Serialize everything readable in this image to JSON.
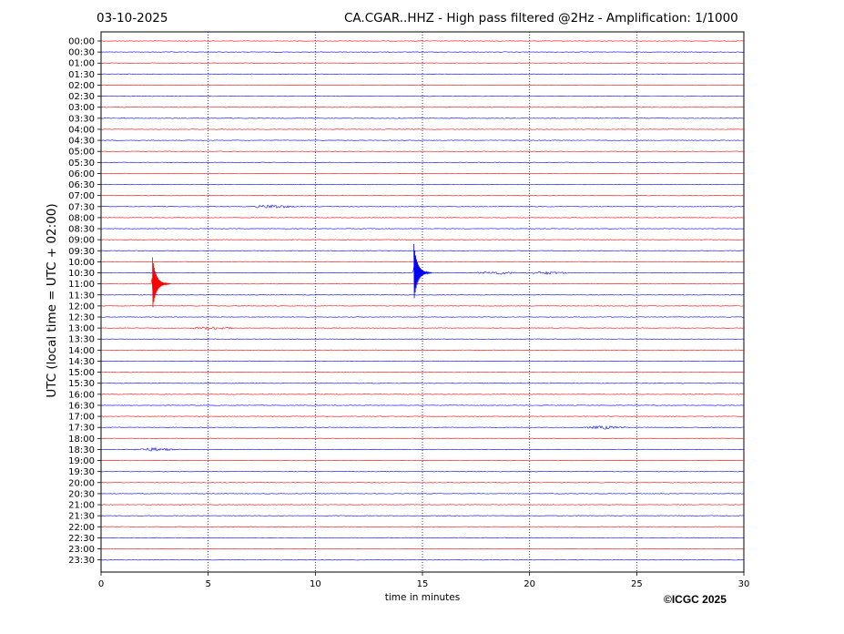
{
  "header": {
    "date": "03-10-2025",
    "title": "CA.CGAR..HHZ - High pass filtered @2Hz - Amplification: 1/1000"
  },
  "footer": {
    "copyright": "©ICGC 2025"
  },
  "chart_data": {
    "type": "line",
    "title": "CA.CGAR..HHZ - High pass filtered @2Hz - Amplification: 1/1000",
    "xlabel": "time in minutes",
    "ylabel": "UTC (local time = UTC + 02:00)",
    "xlim": [
      0,
      30
    ],
    "x_ticks": [
      0,
      5,
      10,
      15,
      20,
      25,
      30
    ],
    "x_grid": "dotted vertical lines at 5, 10, 15, 20, 25",
    "y_ticks": [
      "00:00",
      "00:30",
      "01:00",
      "01:30",
      "02:00",
      "02:30",
      "03:00",
      "03:30",
      "04:00",
      "04:30",
      "05:00",
      "05:30",
      "06:00",
      "06:30",
      "07:00",
      "07:30",
      "08:00",
      "08:30",
      "09:00",
      "09:30",
      "10:00",
      "10:30",
      "11:00",
      "11:30",
      "12:00",
      "12:30",
      "13:00",
      "13:30",
      "14:00",
      "14:30",
      "15:00",
      "15:30",
      "16:00",
      "16:30",
      "17:00",
      "17:30",
      "18:00",
      "18:30",
      "19:00",
      "19:30",
      "20:00",
      "20:30",
      "21:00",
      "21:30",
      "22:00",
      "22:30",
      "23:00",
      "23:30"
    ],
    "trace_colors": [
      "#ff0000",
      "#0000ff"
    ],
    "events": [
      {
        "trace": "11:00",
        "minute": 2.4,
        "amplitude": 2.4,
        "color": "#ff0000"
      },
      {
        "trace": "10:30",
        "minute": 14.6,
        "amplitude": 2.6,
        "color": "#0000ff"
      }
    ],
    "noise_bursts": [
      {
        "trace": "07:30",
        "minute": 8.0,
        "amplitude": 0.35
      },
      {
        "trace": "13:00",
        "minute": 5.2,
        "amplitude": 0.3
      },
      {
        "trace": "17:30",
        "minute": 23.5,
        "amplitude": 0.3
      },
      {
        "trace": "18:30",
        "minute": 2.5,
        "amplitude": 0.3
      },
      {
        "trace": "10:30",
        "minute": 18.5,
        "amplitude": 0.25
      },
      {
        "trace": "10:30",
        "minute": 20.8,
        "amplitude": 0.25
      }
    ]
  }
}
